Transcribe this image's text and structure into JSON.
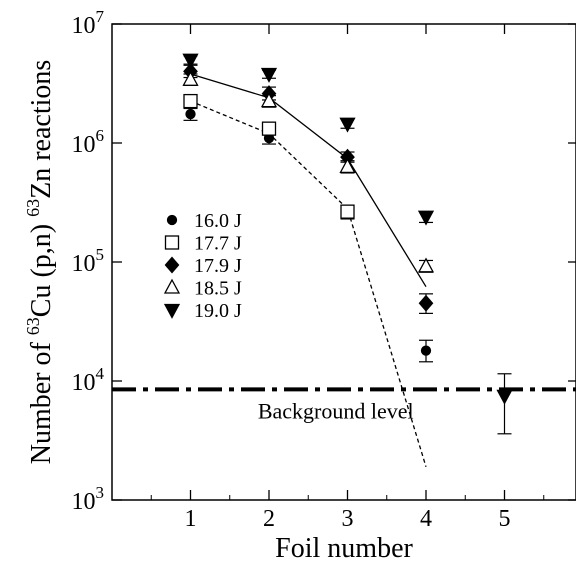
{
  "chart_data": {
    "type": "scatter",
    "xlabel": "Foil number",
    "ylabel": {
      "prefix": "Number of ",
      "sup1": "63",
      "mid": "Cu (p,n) ",
      "sup2": "63",
      "suffix": "Zn reactions"
    },
    "xlim": [
      0,
      6
    ],
    "ylim": [
      1000,
      10000000
    ],
    "yscale": "log",
    "x_ticks": [
      {
        "value": 1,
        "label": "1"
      },
      {
        "value": 2,
        "label": "2"
      },
      {
        "value": 3,
        "label": "3"
      },
      {
        "value": 4,
        "label": "4"
      },
      {
        "value": 5,
        "label": "5"
      }
    ],
    "y_ticks": [
      {
        "value": 1000,
        "base": "10",
        "exp": "3"
      },
      {
        "value": 10000,
        "base": "10",
        "exp": "4"
      },
      {
        "value": 100000,
        "base": "10",
        "exp": "5"
      },
      {
        "value": 1000000,
        "base": "10",
        "exp": "6"
      },
      {
        "value": 10000000,
        "base": "10",
        "exp": "7"
      }
    ],
    "legend_position": "left-middle",
    "series": [
      {
        "name": "16.0 J",
        "marker": "circle-filled",
        "points": [
          {
            "x": 1,
            "y": 1750000,
            "lo": 1550000,
            "hi": 1950000
          },
          {
            "x": 2,
            "y": 1100000,
            "lo": 980000,
            "hi": 1230000
          },
          {
            "x": 3,
            "y": 260000,
            "lo": 230000,
            "hi": 300000
          },
          {
            "x": 4,
            "y": 18000,
            "lo": 14500,
            "hi": 22000
          }
        ]
      },
      {
        "name": "17.7 J",
        "marker": "square-open",
        "points": [
          {
            "x": 1,
            "y": 2250000,
            "lo": 2000000,
            "hi": 2500000
          },
          {
            "x": 2,
            "y": 1320000,
            "lo": 1180000,
            "hi": 1460000
          },
          {
            "x": 3,
            "y": 265000,
            "lo": 235000,
            "hi": 300000
          }
        ]
      },
      {
        "name": "17.9 J",
        "marker": "diamond-filled",
        "points": [
          {
            "x": 1,
            "y": 4000000,
            "lo": 3550000,
            "hi": 4500000
          },
          {
            "x": 2,
            "y": 2600000,
            "lo": 2300000,
            "hi": 2950000
          },
          {
            "x": 3,
            "y": 760000,
            "lo": 690000,
            "hi": 840000
          },
          {
            "x": 4,
            "y": 45000,
            "lo": 37000,
            "hi": 54000
          }
        ]
      },
      {
        "name": "18.5 J",
        "marker": "triangle-up-open",
        "points": [
          {
            "x": 1,
            "y": 3400000,
            "lo": 3050000,
            "hi": 3800000
          },
          {
            "x": 2,
            "y": 2250000,
            "lo": 2000000,
            "hi": 2500000
          },
          {
            "x": 3,
            "y": 630000,
            "lo": 560000,
            "hi": 710000
          },
          {
            "x": 4,
            "y": 92000,
            "lo": 82000,
            "hi": 103000
          }
        ]
      },
      {
        "name": "19.0 J",
        "marker": "triangle-down-filled",
        "points": [
          {
            "x": 1,
            "y": 5000000,
            "lo": 4600000,
            "hi": 5400000
          },
          {
            "x": 2,
            "y": 3800000,
            "lo": 3500000,
            "hi": 4100000
          },
          {
            "x": 3,
            "y": 1450000,
            "lo": 1330000,
            "hi": 1580000
          },
          {
            "x": 4,
            "y": 240000,
            "lo": 215000,
            "hi": 265000
          },
          {
            "x": 5,
            "y": 7500,
            "lo": 3600,
            "hi": 11500
          }
        ]
      }
    ],
    "lines": [
      {
        "style": "solid",
        "points": [
          [
            1,
            3800000
          ],
          [
            2,
            2400000
          ],
          [
            3,
            740000
          ],
          [
            4,
            62000
          ]
        ]
      },
      {
        "style": "dashed",
        "points": [
          [
            1,
            2250000
          ],
          [
            2,
            1200000
          ],
          [
            3,
            280000
          ],
          [
            4,
            1900
          ]
        ]
      }
    ],
    "background_level": {
      "y": 8500,
      "label": "Background level",
      "style": "dash-dot"
    }
  }
}
